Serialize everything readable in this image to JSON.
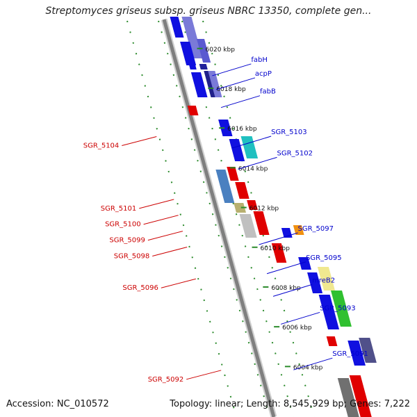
{
  "title": "Streptomyces griseus subsp. griseus NBRC 13350, complete gen...",
  "accession_text": "Accession: NC_010572",
  "stats_text": "Topology: linear; Length: 8,545,929 bp; Genes: 7,222",
  "colors": {
    "axis": "#7f7f7f",
    "forward_label": "#0000cc",
    "reverse_label": "#cc0000",
    "tick_dots": "#2a8a2a"
  },
  "ticks": [
    {
      "label": "6020 kbp",
      "t": 0.073
    },
    {
      "label": "6018 kbp",
      "t": 0.173
    },
    {
      "label": "6016 kbp",
      "t": 0.273
    },
    {
      "label": "6014 kbp",
      "t": 0.373
    },
    {
      "label": "6012 kbp",
      "t": 0.473
    },
    {
      "label": "6010 kbp",
      "t": 0.573
    },
    {
      "label": "6008 kbp",
      "t": 0.673
    },
    {
      "label": "6006 kbp",
      "t": 0.773
    },
    {
      "label": "6004 kbp",
      "t": 0.873
    }
  ],
  "forward_genes": [
    {
      "label": "fabH",
      "t": 0.11
    },
    {
      "label": "acpP",
      "t": 0.145
    },
    {
      "label": "fabB",
      "t": 0.19
    },
    {
      "label": "SGR_5103",
      "t": 0.292
    },
    {
      "label": "SGR_5102",
      "t": 0.345
    },
    {
      "label": "SGR_5097",
      "t": 0.535
    },
    {
      "label": "SGR_5095",
      "t": 0.608
    },
    {
      "label": "mreB2",
      "t": 0.665
    },
    {
      "label": "SGR_5093",
      "t": 0.735
    },
    {
      "label": "SGR_5091",
      "t": 0.85
    }
  ],
  "reverse_genes": [
    {
      "label": "SGR_5104",
      "t": 0.312
    },
    {
      "label": "SGR_5101",
      "t": 0.47
    },
    {
      "label": "SGR_5100",
      "t": 0.51
    },
    {
      "label": "SGR_5099",
      "t": 0.55
    },
    {
      "label": "SGR_5098",
      "t": 0.59
    },
    {
      "label": "SGR_5096",
      "t": 0.67
    },
    {
      "label": "SGR_5092",
      "t": 0.9
    }
  ]
}
